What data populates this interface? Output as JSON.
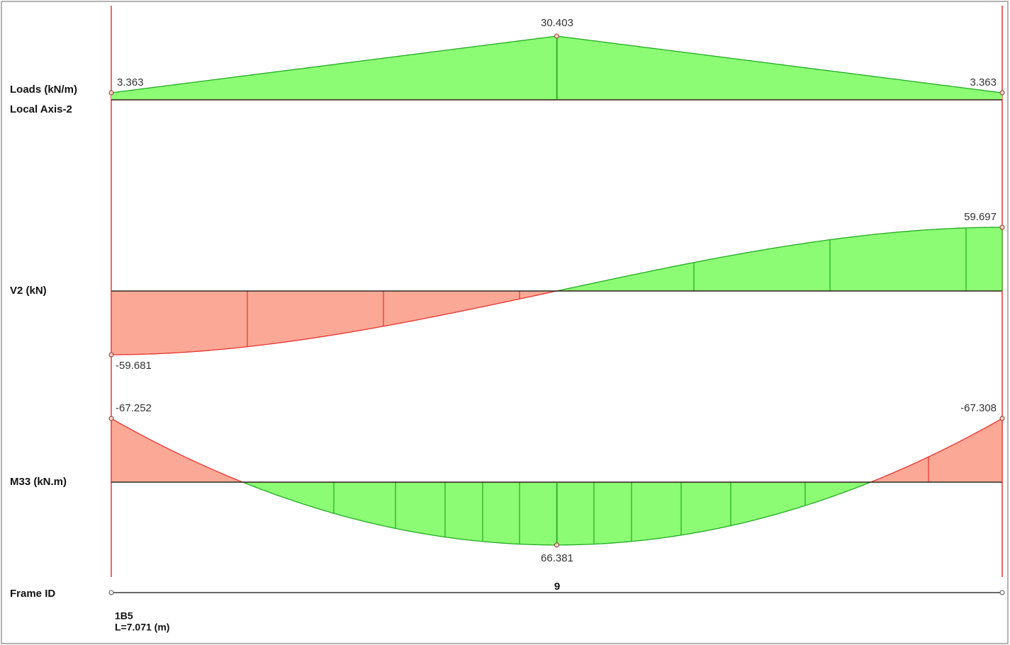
{
  "panels": [
    {
      "label": "Loads (kN/m)",
      "axis_label": "Local Axis-2",
      "values": [
        3.363,
        30.403,
        3.363
      ]
    },
    {
      "label": "V2 (kN)",
      "values": [
        -59.681,
        59.697
      ]
    },
    {
      "label": "M33 (kN.m)",
      "values": [
        -67.252,
        66.381,
        -67.308
      ]
    }
  ],
  "frame": {
    "label": "Frame ID",
    "id": "9",
    "name": "1B5",
    "length": "L=7.071 (m)"
  },
  "colors": {
    "positive": "#8cfc74",
    "negative": "#fba996"
  }
}
